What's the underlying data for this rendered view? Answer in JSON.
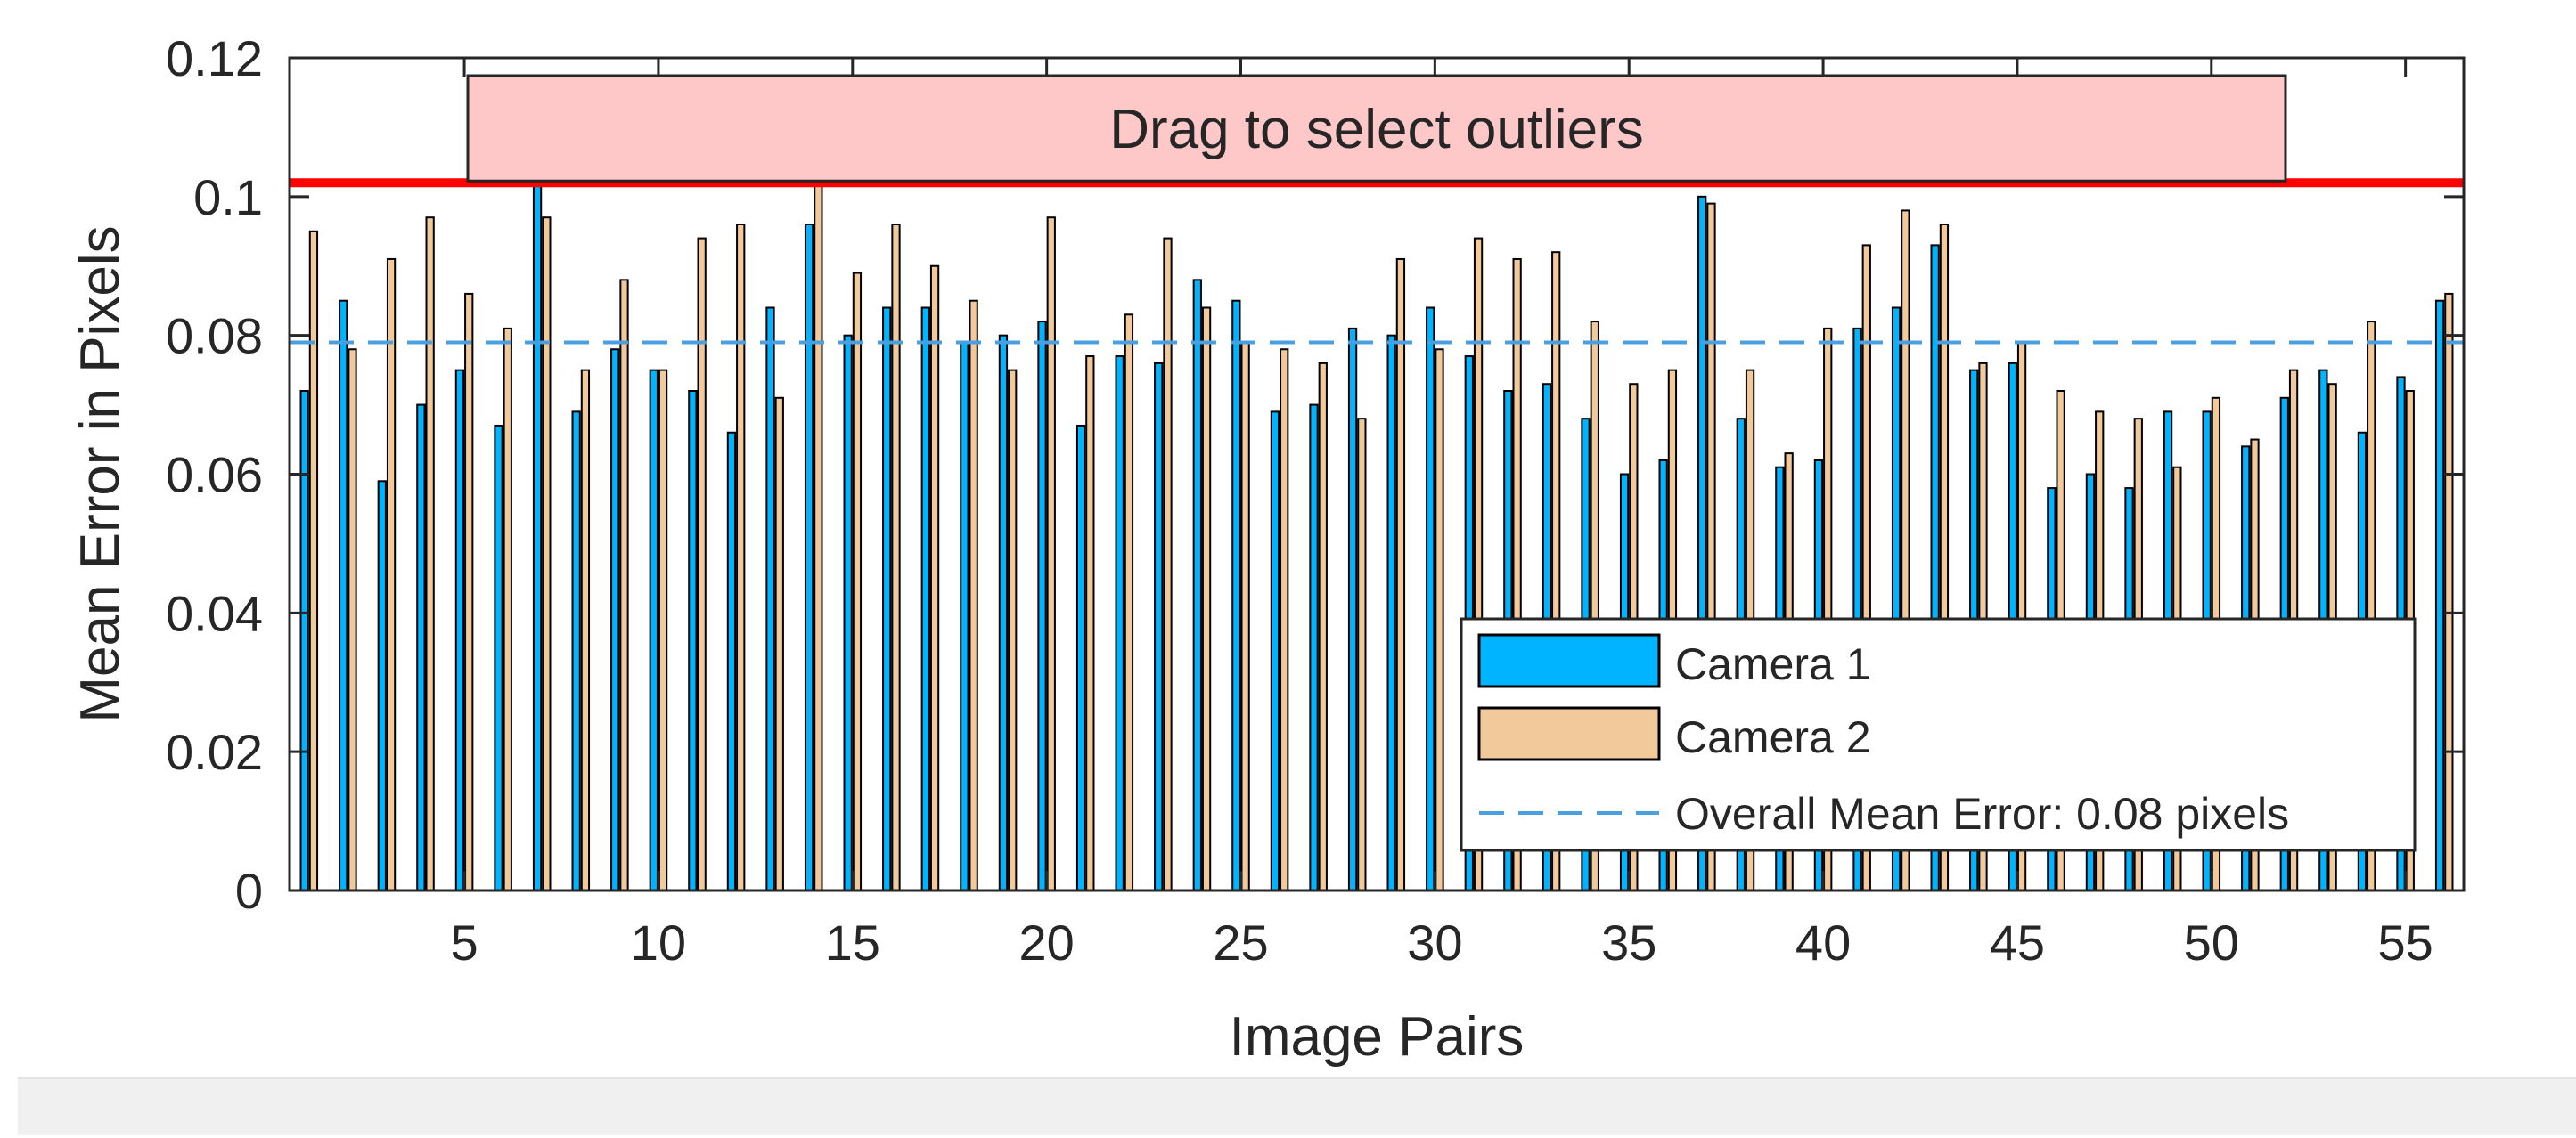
{
  "chart_data": {
    "type": "bar",
    "xlabel": "Image Pairs",
    "ylabel": "Mean Error in Pixels",
    "xlim": [
      0.5,
      56.5
    ],
    "ylim": [
      0,
      0.12
    ],
    "x_ticks": [
      5,
      10,
      15,
      20,
      25,
      30,
      35,
      40,
      45,
      50,
      55
    ],
    "y_ticks": [
      0,
      0.02,
      0.04,
      0.06,
      0.08,
      0.1,
      0.12
    ],
    "y_tick_labels": [
      "0",
      "0.02",
      "0.04",
      "0.06",
      "0.08",
      "0.1",
      "0.12"
    ],
    "grid": false,
    "legend_position": "bottom-right",
    "categories": [
      1,
      2,
      3,
      4,
      5,
      6,
      7,
      8,
      9,
      10,
      11,
      12,
      13,
      14,
      15,
      16,
      17,
      18,
      19,
      20,
      21,
      22,
      23,
      24,
      25,
      26,
      27,
      28,
      29,
      30,
      31,
      32,
      33,
      34,
      35,
      36,
      37,
      38,
      39,
      40,
      41,
      42,
      43,
      44,
      45,
      46,
      47,
      48,
      49,
      50,
      51,
      52,
      53,
      54,
      55,
      56
    ],
    "series": [
      {
        "name": "Camera 1",
        "color": "#00b4ff",
        "values": [
          0.072,
          0.085,
          0.059,
          0.07,
          0.075,
          0.067,
          0.102,
          0.069,
          0.078,
          0.075,
          0.072,
          0.066,
          0.084,
          0.096,
          0.08,
          0.084,
          0.084,
          0.079,
          0.08,
          0.082,
          0.067,
          0.077,
          0.076,
          0.088,
          0.085,
          0.069,
          0.07,
          0.081,
          0.08,
          0.084,
          0.077,
          0.072,
          0.073,
          0.068,
          0.06,
          0.062,
          0.1,
          0.068,
          0.061,
          0.062,
          0.081,
          0.084,
          0.093,
          0.075,
          0.076,
          0.058,
          0.06,
          0.058,
          0.069,
          0.069,
          0.064,
          0.071,
          0.075,
          0.066,
          0.074,
          0.085
        ]
      },
      {
        "name": "Camera 2",
        "color": "#f2c99b",
        "values": [
          0.095,
          0.078,
          0.091,
          0.097,
          0.086,
          0.081,
          0.097,
          0.075,
          0.088,
          0.075,
          0.094,
          0.096,
          0.071,
          0.102,
          0.089,
          0.096,
          0.09,
          0.085,
          0.075,
          0.097,
          0.077,
          0.083,
          0.094,
          0.084,
          0.079,
          0.078,
          0.076,
          0.068,
          0.091,
          0.078,
          0.094,
          0.091,
          0.092,
          0.082,
          0.073,
          0.075,
          0.099,
          0.075,
          0.063,
          0.081,
          0.093,
          0.098,
          0.096,
          0.076,
          0.079,
          0.072,
          0.069,
          0.068,
          0.061,
          0.071,
          0.065,
          0.075,
          0.073,
          0.082,
          0.072,
          0.086
        ]
      }
    ],
    "overall_mean": {
      "value": 0.079,
      "label": "Overall Mean Error: 0.08 pixels",
      "color": "#4a9fe0"
    },
    "outlier_threshold": {
      "value": 0.102,
      "color": "#ff0000"
    },
    "selection_banner": {
      "text": "Drag to select outliers",
      "fill": "#ffc8c8"
    },
    "legend": [
      "Camera 1",
      "Camera 2",
      "Overall Mean Error: 0.08 pixels"
    ]
  }
}
